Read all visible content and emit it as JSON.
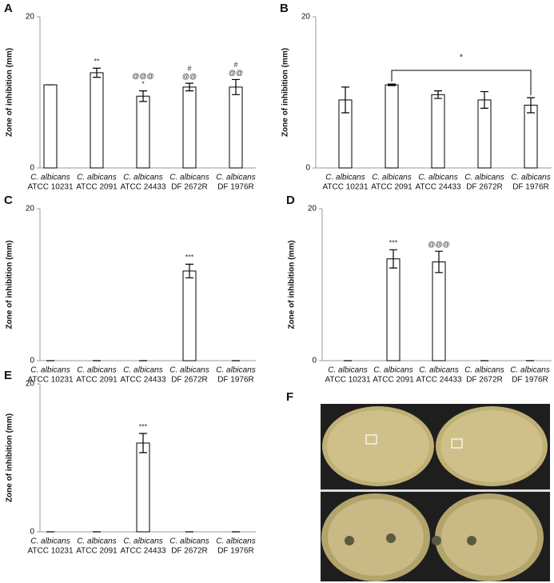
{
  "chart_data": [
    {
      "type": "bar",
      "panel": "A",
      "ylabel": "Zone of inhibition (mm)",
      "color": "#ffffff",
      "categories": [
        [
          "C. albicans",
          "ATCC 10231"
        ],
        [
          "C. albicans",
          "ATCC 2091"
        ],
        [
          "C. albicans",
          "ATCC 24433"
        ],
        [
          "C. albicans",
          "DF 2672R"
        ],
        [
          "C. albicans",
          "DF 1976R"
        ]
      ],
      "values": [
        11.0,
        12.6,
        9.5,
        10.7,
        10.7
      ],
      "errors": [
        0,
        0.6,
        0.7,
        0.5,
        1.0
      ],
      "annotations": [
        null,
        [
          "**"
        ],
        [
          "@@@",
          "*"
        ],
        [
          "#",
          "@@"
        ],
        [
          "#",
          "@@"
        ]
      ],
      "ylim": [
        0,
        20
      ],
      "yticks": [
        0,
        20
      ]
    },
    {
      "type": "bar",
      "panel": "B",
      "ylabel": "Zone of inhibition (mm)",
      "color": "#ffffff",
      "categories": [
        [
          "C. albicans",
          "ATCC 10231"
        ],
        [
          "C. albicans",
          "ATCC 2091"
        ],
        [
          "C. albicans",
          "ATCC 24433"
        ],
        [
          "C. albicans",
          "DF 2672R"
        ],
        [
          "C. albicans",
          "DF 1976R"
        ]
      ],
      "values": [
        9.0,
        11.0,
        9.7,
        9.0,
        8.3
      ],
      "errors": [
        1.7,
        0.1,
        0.5,
        1.1,
        1.0
      ],
      "bracket_label": "*",
      "ylim": [
        0,
        20
      ],
      "yticks": [
        0,
        20
      ]
    },
    {
      "type": "bar",
      "panel": "C",
      "ylabel": "Zone of inhibition (mm)",
      "color": "#ffffff",
      "categories": [
        [
          "C. albicans",
          "ATCC 10231"
        ],
        [
          "C. albicans",
          "ATCC 2091"
        ],
        [
          "C. albicans",
          "ATCC 24433"
        ],
        [
          "C. albicans",
          "DF 2672R"
        ],
        [
          "C. albicans",
          "DF 1976R"
        ]
      ],
      "values": [
        0,
        0,
        0,
        11.8,
        0
      ],
      "errors": [
        0,
        0,
        0,
        0.9,
        0
      ],
      "annotations": [
        null,
        null,
        null,
        [
          "***"
        ],
        null
      ],
      "ylim": [
        0,
        20
      ],
      "yticks": [
        0,
        20
      ]
    },
    {
      "type": "bar",
      "panel": "D",
      "ylabel": "Zone of inhibition (mm)",
      "color": "#ffffff",
      "categories": [
        [
          "C. albicans",
          "ATCC 10231"
        ],
        [
          "C. albicans",
          "ATCC 2091"
        ],
        [
          "C. albicans",
          "ATCC 24433"
        ],
        [
          "C. albicans",
          "DF 2672R"
        ],
        [
          "C. albicans",
          "DF 1976R"
        ]
      ],
      "values": [
        0,
        13.4,
        13.0,
        0,
        0
      ],
      "errors": [
        0,
        1.2,
        1.4,
        0,
        0
      ],
      "annotations": [
        null,
        [
          "***"
        ],
        [
          "@@@"
        ],
        null,
        null
      ],
      "ylim": [
        0,
        20
      ],
      "yticks": [
        0,
        20
      ]
    },
    {
      "type": "bar",
      "panel": "E",
      "ylabel": "Zone of inhibition (mm)",
      "color": "#ffffff",
      "categories": [
        [
          "C. albicans",
          "ATCC 10231"
        ],
        [
          "C. albicans",
          "ATCC 2091"
        ],
        [
          "C. albicans",
          "ATCC 24433"
        ],
        [
          "C. albicans",
          "DF 2672R"
        ],
        [
          "C. albicans",
          "DF 1976R"
        ]
      ],
      "values": [
        0,
        0,
        12.0,
        0,
        0
      ],
      "errors": [
        0,
        0,
        1.3,
        0,
        0
      ],
      "annotations": [
        null,
        null,
        [
          "***"
        ],
        null,
        null
      ],
      "ylim": [
        0,
        20
      ],
      "yticks": [
        0,
        20
      ]
    }
  ],
  "image_panel": {
    "label": "F"
  }
}
